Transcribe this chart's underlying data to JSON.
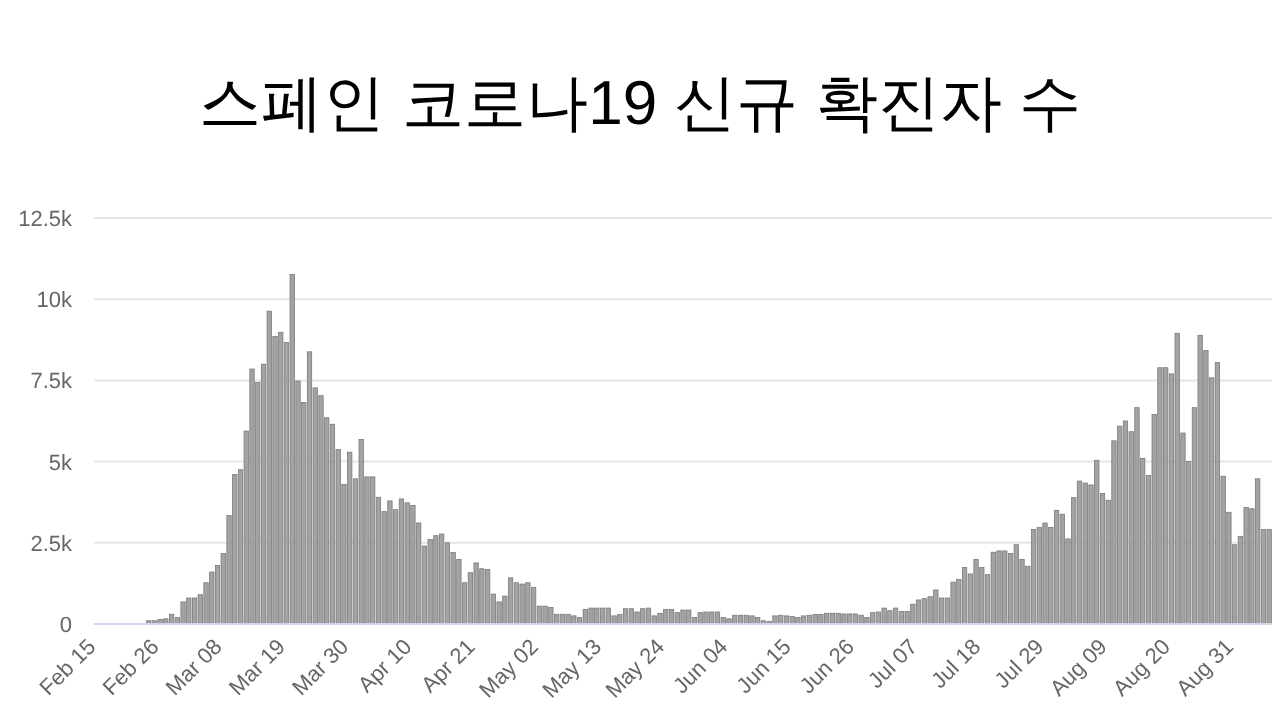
{
  "chart_data": {
    "type": "bar",
    "title": "스페인 코로나19 신규 확진자 수",
    "categories": [
      "Feb 15",
      null,
      null,
      null,
      null,
      null,
      null,
      null,
      null,
      null,
      null,
      "Feb 26",
      null,
      null,
      null,
      null,
      null,
      null,
      null,
      null,
      null,
      null,
      "Mar 08",
      null,
      null,
      null,
      null,
      null,
      null,
      null,
      null,
      null,
      null,
      "Mar 19",
      null,
      null,
      null,
      null,
      null,
      null,
      null,
      null,
      null,
      null,
      "Mar 30",
      null,
      null,
      null,
      null,
      null,
      null,
      null,
      null,
      null,
      null,
      "Apr 10",
      null,
      null,
      null,
      null,
      null,
      null,
      null,
      null,
      null,
      null,
      "Apr 21",
      null,
      null,
      null,
      null,
      null,
      null,
      null,
      null,
      null,
      null,
      "May 02",
      null,
      null,
      null,
      null,
      null,
      null,
      null,
      null,
      null,
      null,
      "May 13",
      null,
      null,
      null,
      null,
      null,
      null,
      null,
      null,
      null,
      null,
      "May 24",
      null,
      null,
      null,
      null,
      null,
      null,
      null,
      null,
      null,
      null,
      "Jun 04",
      null,
      null,
      null,
      null,
      null,
      null,
      null,
      null,
      null,
      null,
      "Jun 15",
      null,
      null,
      null,
      null,
      null,
      null,
      null,
      null,
      null,
      null,
      "Jun 26",
      null,
      null,
      null,
      null,
      null,
      null,
      null,
      null,
      null,
      null,
      "Jul 07",
      null,
      null,
      null,
      null,
      null,
      null,
      null,
      null,
      null,
      null,
      "Jul 18",
      null,
      null,
      null,
      null,
      null,
      null,
      null,
      null,
      null,
      null,
      "Jul 29",
      null,
      null,
      null,
      null,
      null,
      null,
      null,
      null,
      null,
      null,
      "Aug 09",
      null,
      null,
      null,
      null,
      null,
      null,
      null,
      null,
      null,
      null,
      "Aug 20",
      null,
      null,
      null,
      null,
      null,
      null,
      null,
      null,
      null,
      null,
      "Aug 31",
      null,
      null,
      null,
      null,
      null,
      null
    ],
    "values": [
      0,
      0,
      0,
      0,
      0,
      0,
      0,
      0,
      0,
      100,
      100,
      140,
      160,
      300,
      200,
      680,
      800,
      800,
      900,
      1270,
      1600,
      1800,
      2170,
      3340,
      4600,
      4750,
      5940,
      7850,
      7440,
      8000,
      9630,
      8850,
      8980,
      8670,
      10760,
      7480,
      6820,
      8380,
      7270,
      7030,
      6350,
      6150,
      5370,
      4300,
      5290,
      4470,
      5680,
      4530,
      4530,
      3900,
      3460,
      3790,
      3520,
      3850,
      3730,
      3650,
      3110,
      2400,
      2600,
      2720,
      2770,
      2500,
      2200,
      1990,
      1270,
      1580,
      1880,
      1700,
      1680,
      920,
      680,
      860,
      1420,
      1270,
      1230,
      1270,
      1130,
      550,
      550,
      510,
      300,
      300,
      300,
      250,
      200,
      450,
      490,
      490,
      490,
      490,
      250,
      290,
      470,
      470,
      370,
      470,
      490,
      250,
      330,
      450,
      450,
      350,
      430,
      430,
      200,
      350,
      370,
      370,
      370,
      200,
      160,
      270,
      270,
      270,
      250,
      200,
      100,
      80,
      250,
      270,
      250,
      230,
      200,
      250,
      270,
      290,
      290,
      330,
      330,
      330,
      310,
      310,
      310,
      270,
      200,
      350,
      370,
      490,
      410,
      490,
      390,
      390,
      610,
      740,
      780,
      840,
      1050,
      800,
      800,
      1290,
      1370,
      1740,
      1540,
      1990,
      1740,
      1520,
      2210,
      2250,
      2250,
      2170,
      2440,
      1990,
      1780,
      2910,
      2970,
      3110,
      2970,
      3500,
      3380,
      2620,
      3890,
      4400,
      4340,
      4280,
      5040,
      4020,
      3810,
      5640,
      6090,
      6250,
      5920,
      6660,
      5100,
      4570,
      6450,
      7890,
      7890,
      7700,
      8950,
      5880,
      5000,
      6660,
      8890,
      8420,
      7580,
      8050,
      4550,
      3440,
      2440,
      2700,
      3590,
      3550,
      4470,
      2910,
      2910
    ],
    "color": "#a3a3a3",
    "ylim": [
      0,
      12500
    ],
    "yticks": [
      {
        "value": 0,
        "label": "0"
      },
      {
        "value": 2500,
        "label": "2.5k"
      },
      {
        "value": 5000,
        "label": "5k"
      },
      {
        "value": 7500,
        "label": "7.5k"
      },
      {
        "value": 10000,
        "label": "10k"
      },
      {
        "value": 12500,
        "label": "12.5k"
      }
    ],
    "grid": "y"
  }
}
